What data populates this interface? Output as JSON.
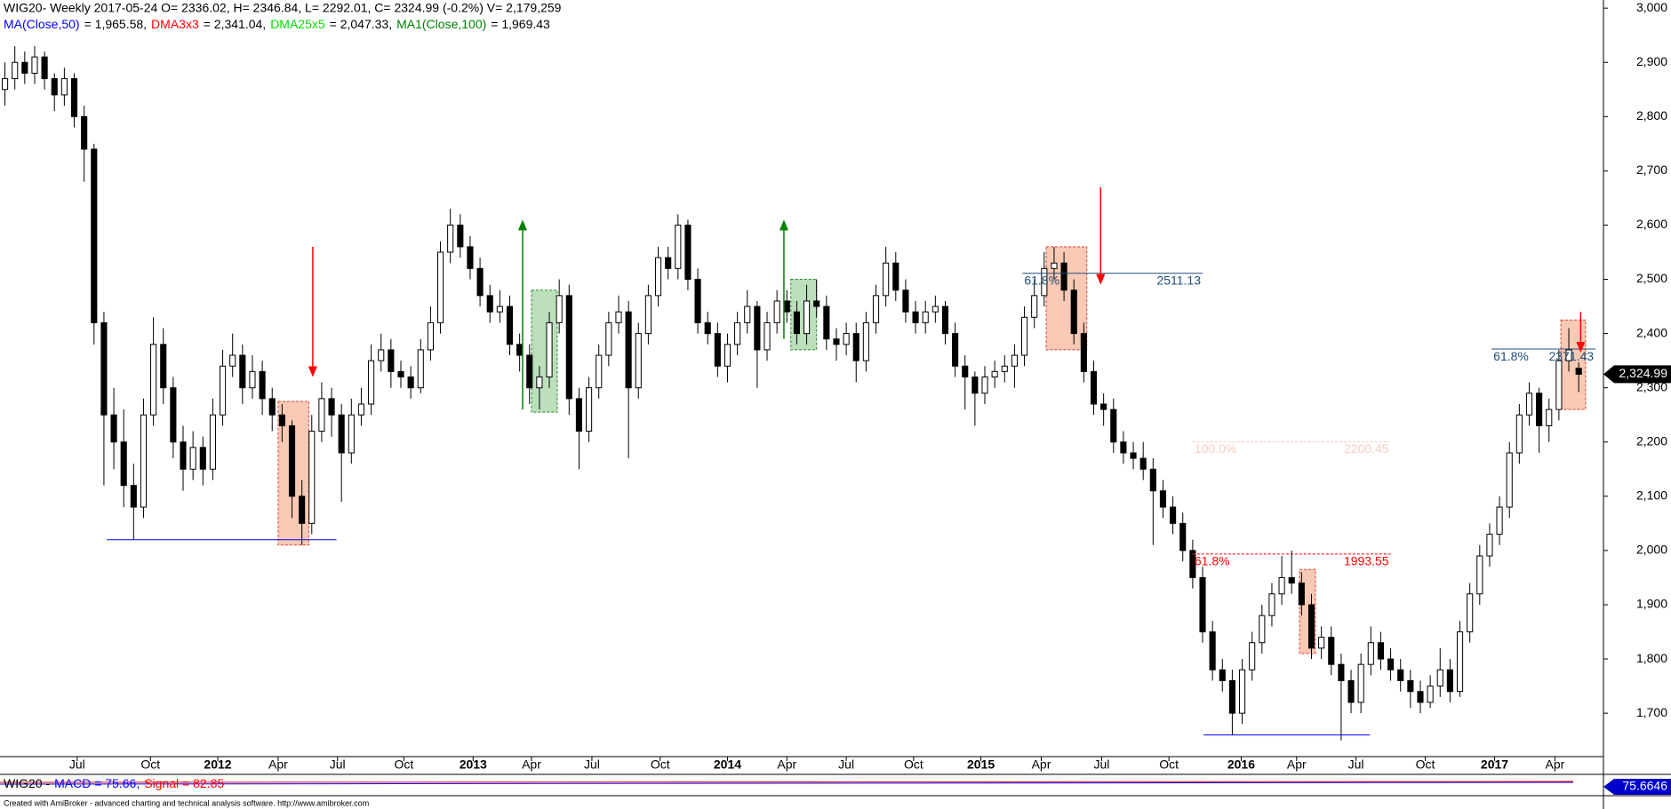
{
  "chart_data": {
    "type": "candlestick",
    "title": "WIG20- Weekly 2017-05-24 O= 2336.02, H= 2346.84, L= 2292.01, C= 2324.99 (-0.2%) V= 2,179,259",
    "indicators": [
      {
        "name": "MA(Close,50)",
        "color": "#0000ff",
        "text": "= 1,965.58,"
      },
      {
        "name": "DMA3x3",
        "color": "#ff0000",
        "text": "= 2,341.04,"
      },
      {
        "name": "DMA25x5",
        "color": "#00e000",
        "text": "= 2,047.33,"
      },
      {
        "name": "MA1(Close,100)",
        "color": "#008000",
        "text": "= 1,969.43"
      }
    ],
    "ylim": [
      1620,
      3015
    ],
    "yticks": [
      {
        "value": 1700,
        "label": "1,700"
      },
      {
        "value": 1800,
        "label": "1,800"
      },
      {
        "value": 1900,
        "label": "1,900"
      },
      {
        "value": 2000,
        "label": "2,000"
      },
      {
        "value": 2100,
        "label": "2,100"
      },
      {
        "value": 2200,
        "label": "2,200"
      },
      {
        "value": 2300,
        "label": "2,300"
      },
      {
        "value": 2400,
        "label": "2,400"
      },
      {
        "value": 2500,
        "label": "2,500"
      },
      {
        "value": 2600,
        "label": "2,600"
      },
      {
        "value": 2700,
        "label": "2,700"
      },
      {
        "value": 2800,
        "label": "2,800"
      },
      {
        "value": 2900,
        "label": "2,900"
      },
      {
        "value": 3000,
        "label": "3,000"
      }
    ],
    "xlim": [
      -0.5,
      161.5
    ],
    "xticks": [
      {
        "value": 7.3,
        "label": "Jul"
      },
      {
        "value": 14.7,
        "label": "Oct"
      },
      {
        "value": 21.5,
        "label": "2012"
      },
      {
        "value": 27.6,
        "label": "Apr"
      },
      {
        "value": 33.6,
        "label": "Jul"
      },
      {
        "value": 40.3,
        "label": "Oct"
      },
      {
        "value": 47.3,
        "label": "2013"
      },
      {
        "value": 53.2,
        "label": "Apr"
      },
      {
        "value": 59.3,
        "label": "Jul"
      },
      {
        "value": 66.2,
        "label": "Oct"
      },
      {
        "value": 73,
        "label": "2014"
      },
      {
        "value": 79,
        "label": "Apr"
      },
      {
        "value": 85,
        "label": "Jul"
      },
      {
        "value": 91.8,
        "label": "Oct"
      },
      {
        "value": 98.6,
        "label": "2015"
      },
      {
        "value": 104.7,
        "label": "Apr"
      },
      {
        "value": 110.8,
        "label": "Jul"
      },
      {
        "value": 117.6,
        "label": "Oct"
      },
      {
        "value": 124.9,
        "label": "2016"
      },
      {
        "value": 130.5,
        "label": "Apr"
      },
      {
        "value": 136.5,
        "label": "Jul"
      },
      {
        "value": 143.5,
        "label": "Oct"
      },
      {
        "value": 150.5,
        "label": "2017"
      },
      {
        "value": 156.6,
        "label": "Apr"
      }
    ],
    "up_color": "#ffffff",
    "down_color": "#000000",
    "candles": [
      [
        2850,
        2900,
        2820,
        2870
      ],
      [
        2870,
        2930,
        2850,
        2900
      ],
      [
        2900,
        2920,
        2860,
        2880
      ],
      [
        2880,
        2930,
        2860,
        2910
      ],
      [
        2910,
        2920,
        2850,
        2870
      ],
      [
        2870,
        2880,
        2810,
        2840
      ],
      [
        2840,
        2890,
        2820,
        2870
      ],
      [
        2870,
        2880,
        2780,
        2800
      ],
      [
        2800,
        2820,
        2680,
        2740
      ],
      [
        2740,
        2750,
        2380,
        2420
      ],
      [
        2420,
        2440,
        2120,
        2250
      ],
      [
        2250,
        2300,
        2150,
        2200
      ],
      [
        2200,
        2260,
        2080,
        2120
      ],
      [
        2120,
        2160,
        2020,
        2080
      ],
      [
        2080,
        2280,
        2060,
        2250
      ],
      [
        2250,
        2430,
        2230,
        2380
      ],
      [
        2380,
        2410,
        2270,
        2300
      ],
      [
        2300,
        2320,
        2170,
        2200
      ],
      [
        2200,
        2230,
        2110,
        2150
      ],
      [
        2150,
        2220,
        2130,
        2190
      ],
      [
        2190,
        2210,
        2120,
        2150
      ],
      [
        2150,
        2280,
        2130,
        2250
      ],
      [
        2250,
        2370,
        2230,
        2340
      ],
      [
        2340,
        2400,
        2320,
        2360
      ],
      [
        2360,
        2380,
        2270,
        2300
      ],
      [
        2300,
        2360,
        2280,
        2330
      ],
      [
        2330,
        2350,
        2250,
        2280
      ],
      [
        2280,
        2300,
        2220,
        2250
      ],
      [
        2250,
        2270,
        2200,
        2230
      ],
      [
        2230,
        2240,
        2060,
        2100
      ],
      [
        2100,
        2130,
        2010,
        2050
      ],
      [
        2050,
        2250,
        2030,
        2220
      ],
      [
        2220,
        2310,
        2200,
        2280
      ],
      [
        2280,
        2300,
        2210,
        2250
      ],
      [
        2250,
        2270,
        2090,
        2180
      ],
      [
        2180,
        2280,
        2160,
        2250
      ],
      [
        2250,
        2300,
        2230,
        2270
      ],
      [
        2270,
        2380,
        2250,
        2350
      ],
      [
        2350,
        2400,
        2330,
        2370
      ],
      [
        2370,
        2390,
        2300,
        2330
      ],
      [
        2330,
        2350,
        2300,
        2320
      ],
      [
        2320,
        2340,
        2280,
        2300
      ],
      [
        2300,
        2390,
        2290,
        2370
      ],
      [
        2370,
        2450,
        2350,
        2420
      ],
      [
        2420,
        2570,
        2400,
        2550
      ],
      [
        2550,
        2630,
        2530,
        2600
      ],
      [
        2600,
        2620,
        2540,
        2560
      ],
      [
        2560,
        2580,
        2500,
        2520
      ],
      [
        2520,
        2540,
        2450,
        2470
      ],
      [
        2470,
        2490,
        2420,
        2440
      ],
      [
        2440,
        2480,
        2420,
        2450
      ],
      [
        2450,
        2470,
        2360,
        2380
      ],
      [
        2380,
        2400,
        2330,
        2360
      ],
      [
        2360,
        2380,
        2270,
        2300
      ],
      [
        2300,
        2340,
        2260,
        2320
      ],
      [
        2320,
        2440,
        2300,
        2420
      ],
      [
        2420,
        2500,
        2400,
        2470
      ],
      [
        2470,
        2490,
        2250,
        2280
      ],
      [
        2280,
        2300,
        2150,
        2220
      ],
      [
        2220,
        2320,
        2200,
        2300
      ],
      [
        2300,
        2380,
        2280,
        2360
      ],
      [
        2360,
        2440,
        2340,
        2420
      ],
      [
        2420,
        2470,
        2400,
        2440
      ],
      [
        2440,
        2460,
        2170,
        2300
      ],
      [
        2300,
        2420,
        2280,
        2400
      ],
      [
        2400,
        2490,
        2380,
        2470
      ],
      [
        2470,
        2560,
        2450,
        2540
      ],
      [
        2540,
        2560,
        2500,
        2520
      ],
      [
        2520,
        2620,
        2500,
        2600
      ],
      [
        2600,
        2610,
        2480,
        2500
      ],
      [
        2500,
        2520,
        2400,
        2420
      ],
      [
        2420,
        2440,
        2380,
        2400
      ],
      [
        2400,
        2420,
        2320,
        2340
      ],
      [
        2340,
        2400,
        2310,
        2380
      ],
      [
        2380,
        2440,
        2360,
        2420
      ],
      [
        2420,
        2480,
        2400,
        2450
      ],
      [
        2450,
        2460,
        2300,
        2370
      ],
      [
        2370,
        2440,
        2350,
        2420
      ],
      [
        2420,
        2480,
        2400,
        2460
      ],
      [
        2460,
        2480,
        2420,
        2440
      ],
      [
        2440,
        2460,
        2380,
        2400
      ],
      [
        2400,
        2490,
        2380,
        2460
      ],
      [
        2460,
        2500,
        2430,
        2450
      ],
      [
        2450,
        2470,
        2370,
        2390
      ],
      [
        2390,
        2410,
        2350,
        2380
      ],
      [
        2380,
        2420,
        2360,
        2400
      ],
      [
        2400,
        2420,
        2310,
        2350
      ],
      [
        2350,
        2440,
        2330,
        2420
      ],
      [
        2420,
        2490,
        2400,
        2470
      ],
      [
        2470,
        2560,
        2450,
        2530
      ],
      [
        2530,
        2550,
        2460,
        2480
      ],
      [
        2480,
        2500,
        2420,
        2440
      ],
      [
        2440,
        2460,
        2400,
        2420
      ],
      [
        2420,
        2460,
        2400,
        2440
      ],
      [
        2440,
        2470,
        2420,
        2450
      ],
      [
        2450,
        2460,
        2380,
        2400
      ],
      [
        2400,
        2420,
        2320,
        2340
      ],
      [
        2340,
        2360,
        2260,
        2320
      ],
      [
        2320,
        2330,
        2230,
        2290
      ],
      [
        2290,
        2340,
        2270,
        2320
      ],
      [
        2320,
        2350,
        2300,
        2330
      ],
      [
        2330,
        2360,
        2310,
        2340
      ],
      [
        2340,
        2380,
        2300,
        2360
      ],
      [
        2360,
        2450,
        2340,
        2430
      ],
      [
        2430,
        2500,
        2410,
        2470
      ],
      [
        2470,
        2550,
        2450,
        2520
      ],
      [
        2520,
        2560,
        2500,
        2530
      ],
      [
        2530,
        2550,
        2460,
        2480
      ],
      [
        2480,
        2500,
        2380,
        2400
      ],
      [
        2400,
        2420,
        2310,
        2330
      ],
      [
        2330,
        2350,
        2250,
        2270
      ],
      [
        2270,
        2290,
        2230,
        2260
      ],
      [
        2260,
        2280,
        2180,
        2200
      ],
      [
        2200,
        2220,
        2160,
        2180
      ],
      [
        2180,
        2200,
        2150,
        2170
      ],
      [
        2170,
        2200,
        2130,
        2150
      ],
      [
        2150,
        2170,
        2010,
        2110
      ],
      [
        2110,
        2130,
        2060,
        2080
      ],
      [
        2080,
        2100,
        2030,
        2050
      ],
      [
        2050,
        2070,
        1980,
        2000
      ],
      [
        2000,
        2020,
        1930,
        1950
      ],
      [
        1950,
        1970,
        1830,
        1850
      ],
      [
        1850,
        1870,
        1760,
        1780
      ],
      [
        1780,
        1800,
        1740,
        1760
      ],
      [
        1760,
        1780,
        1660,
        1700
      ],
      [
        1700,
        1800,
        1680,
        1780
      ],
      [
        1780,
        1850,
        1760,
        1830
      ],
      [
        1830,
        1900,
        1810,
        1880
      ],
      [
        1880,
        1940,
        1860,
        1920
      ],
      [
        1920,
        1990,
        1900,
        1950
      ],
      [
        1950,
        2000,
        1920,
        1940
      ],
      [
        1940,
        1960,
        1880,
        1900
      ],
      [
        1900,
        1920,
        1800,
        1820
      ],
      [
        1820,
        1860,
        1800,
        1840
      ],
      [
        1840,
        1860,
        1770,
        1790
      ],
      [
        1790,
        1810,
        1650,
        1760
      ],
      [
        1760,
        1780,
        1700,
        1720
      ],
      [
        1720,
        1810,
        1700,
        1790
      ],
      [
        1790,
        1860,
        1770,
        1830
      ],
      [
        1830,
        1850,
        1780,
        1800
      ],
      [
        1800,
        1820,
        1760,
        1780
      ],
      [
        1780,
        1800,
        1740,
        1760
      ],
      [
        1760,
        1780,
        1710,
        1740
      ],
      [
        1740,
        1760,
        1700,
        1720
      ],
      [
        1720,
        1770,
        1710,
        1750
      ],
      [
        1750,
        1820,
        1730,
        1780
      ],
      [
        1780,
        1800,
        1720,
        1740
      ],
      [
        1740,
        1870,
        1730,
        1850
      ],
      [
        1850,
        1940,
        1830,
        1920
      ],
      [
        1920,
        2010,
        1900,
        1990
      ],
      [
        1990,
        2050,
        1970,
        2030
      ],
      [
        2030,
        2100,
        2010,
        2080
      ],
      [
        2080,
        2200,
        2060,
        2180
      ],
      [
        2180,
        2270,
        2160,
        2250
      ],
      [
        2250,
        2310,
        2230,
        2290
      ],
      [
        2290,
        2300,
        2180,
        2230
      ],
      [
        2230,
        2280,
        2200,
        2260
      ],
      [
        2260,
        2370,
        2240,
        2350
      ],
      [
        2350,
        2410,
        2330,
        2370
      ],
      [
        2336.02,
        2346.84,
        2292.01,
        2324.99
      ]
    ],
    "zones": [
      {
        "x": [
          27.6,
          30.7
        ],
        "y": [
          2010,
          2275
        ],
        "color": "#f4a582"
      },
      {
        "x": [
          105.2,
          109.3
        ],
        "y": [
          2370,
          2560
        ],
        "color": "#f4a582"
      },
      {
        "x": [
          130.8,
          132.4
        ],
        "y": [
          1810,
          1965
        ],
        "color": "#f4a582"
      },
      {
        "x": [
          157.2,
          159.7
        ],
        "y": [
          2260,
          2425
        ],
        "color": "#f4a582"
      },
      {
        "x": [
          53.2,
          55.8
        ],
        "y": [
          2255,
          2480
        ],
        "color": "#8fc98f"
      },
      {
        "x": [
          79.4,
          82.0
        ],
        "y": [
          2370,
          2500
        ],
        "color": "#8fc98f"
      }
    ],
    "arrows": [
      {
        "x": 31.1,
        "y": [
          2560,
          2320
        ],
        "color": "#ff0000"
      },
      {
        "x": 52.3,
        "y": [
          2260,
          2610
        ],
        "color": "#008000"
      },
      {
        "x": 78.7,
        "y": [
          2390,
          2610
        ],
        "color": "#008000"
      },
      {
        "x": 110.7,
        "y": [
          2670,
          2490
        ],
        "color": "#ff0000"
      },
      {
        "x": 159.2,
        "y": [
          2440,
          2365
        ],
        "color": "#ff0000"
      }
    ],
    "levels": [
      {
        "value": 2020,
        "x": [
          10.3,
          33.5
        ],
        "color": "#0000ff"
      },
      {
        "value": 1660,
        "x": [
          121.1,
          137.9
        ],
        "color": "#0000ff"
      },
      {
        "value": 2511.13,
        "x": [
          102.8,
          121
        ],
        "color": "#1f4e79",
        "label": "61.8%"
      },
      {
        "value": 1993.55,
        "x": [
          120,
          140
        ],
        "color": "#ff0000",
        "label": "61.8%",
        "dashed": true
      },
      {
        "value": 2200.45,
        "x": [
          120,
          140
        ],
        "color": "#f6cfc2",
        "label": "100.0%",
        "dashed": true
      },
      {
        "value": 2371.43,
        "x": [
          150.2,
          160.7
        ],
        "color": "#1f4e79",
        "label": "61.8%"
      }
    ],
    "last_price": {
      "value": 2324.99,
      "label": "2,324.99"
    },
    "macd_header": [
      {
        "text": "WIG20 -",
        "color": "#000000"
      },
      {
        "text": "MACD = 75.66,",
        "color": "#0000ff"
      },
      {
        "text": "Signal = 82.85",
        "color": "#ff0000"
      }
    ],
    "macd_tag": "75.6646",
    "footer": "Created with AmiBroker - advanced charting and technical analysis software. http://www.amibroker.com"
  }
}
